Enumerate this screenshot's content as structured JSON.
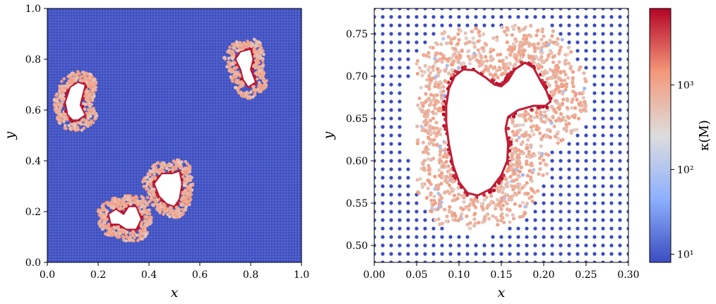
{
  "chart_data": [
    {
      "type": "scatter",
      "panel": "left",
      "xlabel": "x",
      "ylabel": "y",
      "xlim": [
        0.0,
        1.0
      ],
      "ylim": [
        0.0,
        1.0
      ],
      "xticks": [
        "0.0",
        "0.2",
        "0.4",
        "0.6",
        "0.8",
        "1.0"
      ],
      "yticks": [
        "0.0",
        "0.2",
        "0.4",
        "0.6",
        "0.8",
        "1.0"
      ],
      "grid": false,
      "background_value": 8,
      "holes": [
        {
          "cx": 0.12,
          "cy": 0.64,
          "shape": [
            [
              0.07,
              0.63
            ],
            [
              0.09,
              0.69
            ],
            [
              0.12,
              0.71
            ],
            [
              0.15,
              0.7
            ],
            [
              0.14,
              0.66
            ],
            [
              0.13,
              0.62
            ],
            [
              0.15,
              0.58
            ],
            [
              0.12,
              0.56
            ],
            [
              0.1,
              0.56
            ],
            [
              0.08,
              0.58
            ]
          ]
        },
        {
          "cx": 0.79,
          "cy": 0.76,
          "shape": [
            [
              0.74,
              0.8
            ],
            [
              0.76,
              0.83
            ],
            [
              0.8,
              0.84
            ],
            [
              0.81,
              0.8
            ],
            [
              0.8,
              0.76
            ],
            [
              0.82,
              0.71
            ],
            [
              0.79,
              0.69
            ],
            [
              0.77,
              0.72
            ],
            [
              0.76,
              0.76
            ]
          ]
        },
        {
          "cx": 0.31,
          "cy": 0.18,
          "shape": [
            [
              0.24,
              0.19
            ],
            [
              0.27,
              0.21
            ],
            [
              0.3,
              0.19
            ],
            [
              0.32,
              0.22
            ],
            [
              0.35,
              0.22
            ],
            [
              0.37,
              0.17
            ],
            [
              0.35,
              0.13
            ],
            [
              0.31,
              0.13
            ],
            [
              0.28,
              0.15
            ],
            [
              0.25,
              0.15
            ]
          ]
        },
        {
          "cx": 0.49,
          "cy": 0.29,
          "shape": [
            [
              0.42,
              0.31
            ],
            [
              0.45,
              0.35
            ],
            [
              0.49,
              0.35
            ],
            [
              0.52,
              0.36
            ],
            [
              0.53,
              0.31
            ],
            [
              0.52,
              0.25
            ],
            [
              0.5,
              0.22
            ],
            [
              0.47,
              0.23
            ],
            [
              0.44,
              0.26
            ]
          ]
        }
      ]
    },
    {
      "type": "scatter",
      "panel": "right",
      "xlabel": "x",
      "ylabel": "y",
      "xlim": [
        0.0,
        0.3
      ],
      "ylim": [
        0.48,
        0.78
      ],
      "xticks": [
        "0.00",
        "0.05",
        "0.10",
        "0.15",
        "0.20",
        "0.25",
        "0.30"
      ],
      "yticks": [
        "0.50",
        "0.55",
        "0.60",
        "0.65",
        "0.70",
        "0.75"
      ],
      "grid": false,
      "background_value": 8,
      "background_spacing": 0.01,
      "hole_shape": [
        [
          0.085,
          0.665
        ],
        [
          0.088,
          0.685
        ],
        [
          0.095,
          0.7
        ],
        [
          0.105,
          0.708
        ],
        [
          0.118,
          0.707
        ],
        [
          0.132,
          0.698
        ],
        [
          0.142,
          0.69
        ],
        [
          0.15,
          0.688
        ],
        [
          0.158,
          0.695
        ],
        [
          0.166,
          0.708
        ],
        [
          0.178,
          0.716
        ],
        [
          0.188,
          0.71
        ],
        [
          0.196,
          0.695
        ],
        [
          0.203,
          0.683
        ],
        [
          0.208,
          0.67
        ],
        [
          0.202,
          0.665
        ],
        [
          0.188,
          0.665
        ],
        [
          0.17,
          0.66
        ],
        [
          0.158,
          0.652
        ],
        [
          0.155,
          0.638
        ],
        [
          0.158,
          0.62
        ],
        [
          0.157,
          0.6
        ],
        [
          0.15,
          0.583
        ],
        [
          0.138,
          0.567
        ],
        [
          0.122,
          0.559
        ],
        [
          0.11,
          0.562
        ],
        [
          0.1,
          0.575
        ],
        [
          0.093,
          0.595
        ],
        [
          0.088,
          0.62
        ],
        [
          0.085,
          0.645
        ]
      ]
    }
  ],
  "colorbar": {
    "label": "κ(M)",
    "scale": "log",
    "range": [
      8,
      8000
    ],
    "ticks": [
      {
        "value": 10,
        "label": "10¹"
      },
      {
        "value": 100,
        "label": "10²"
      },
      {
        "value": 1000,
        "label": "10³"
      }
    ],
    "colormap": "coolwarm",
    "colors": [
      "#3b4cc0",
      "#8db0fe",
      "#dddddd",
      "#f4987a",
      "#b40426"
    ]
  }
}
